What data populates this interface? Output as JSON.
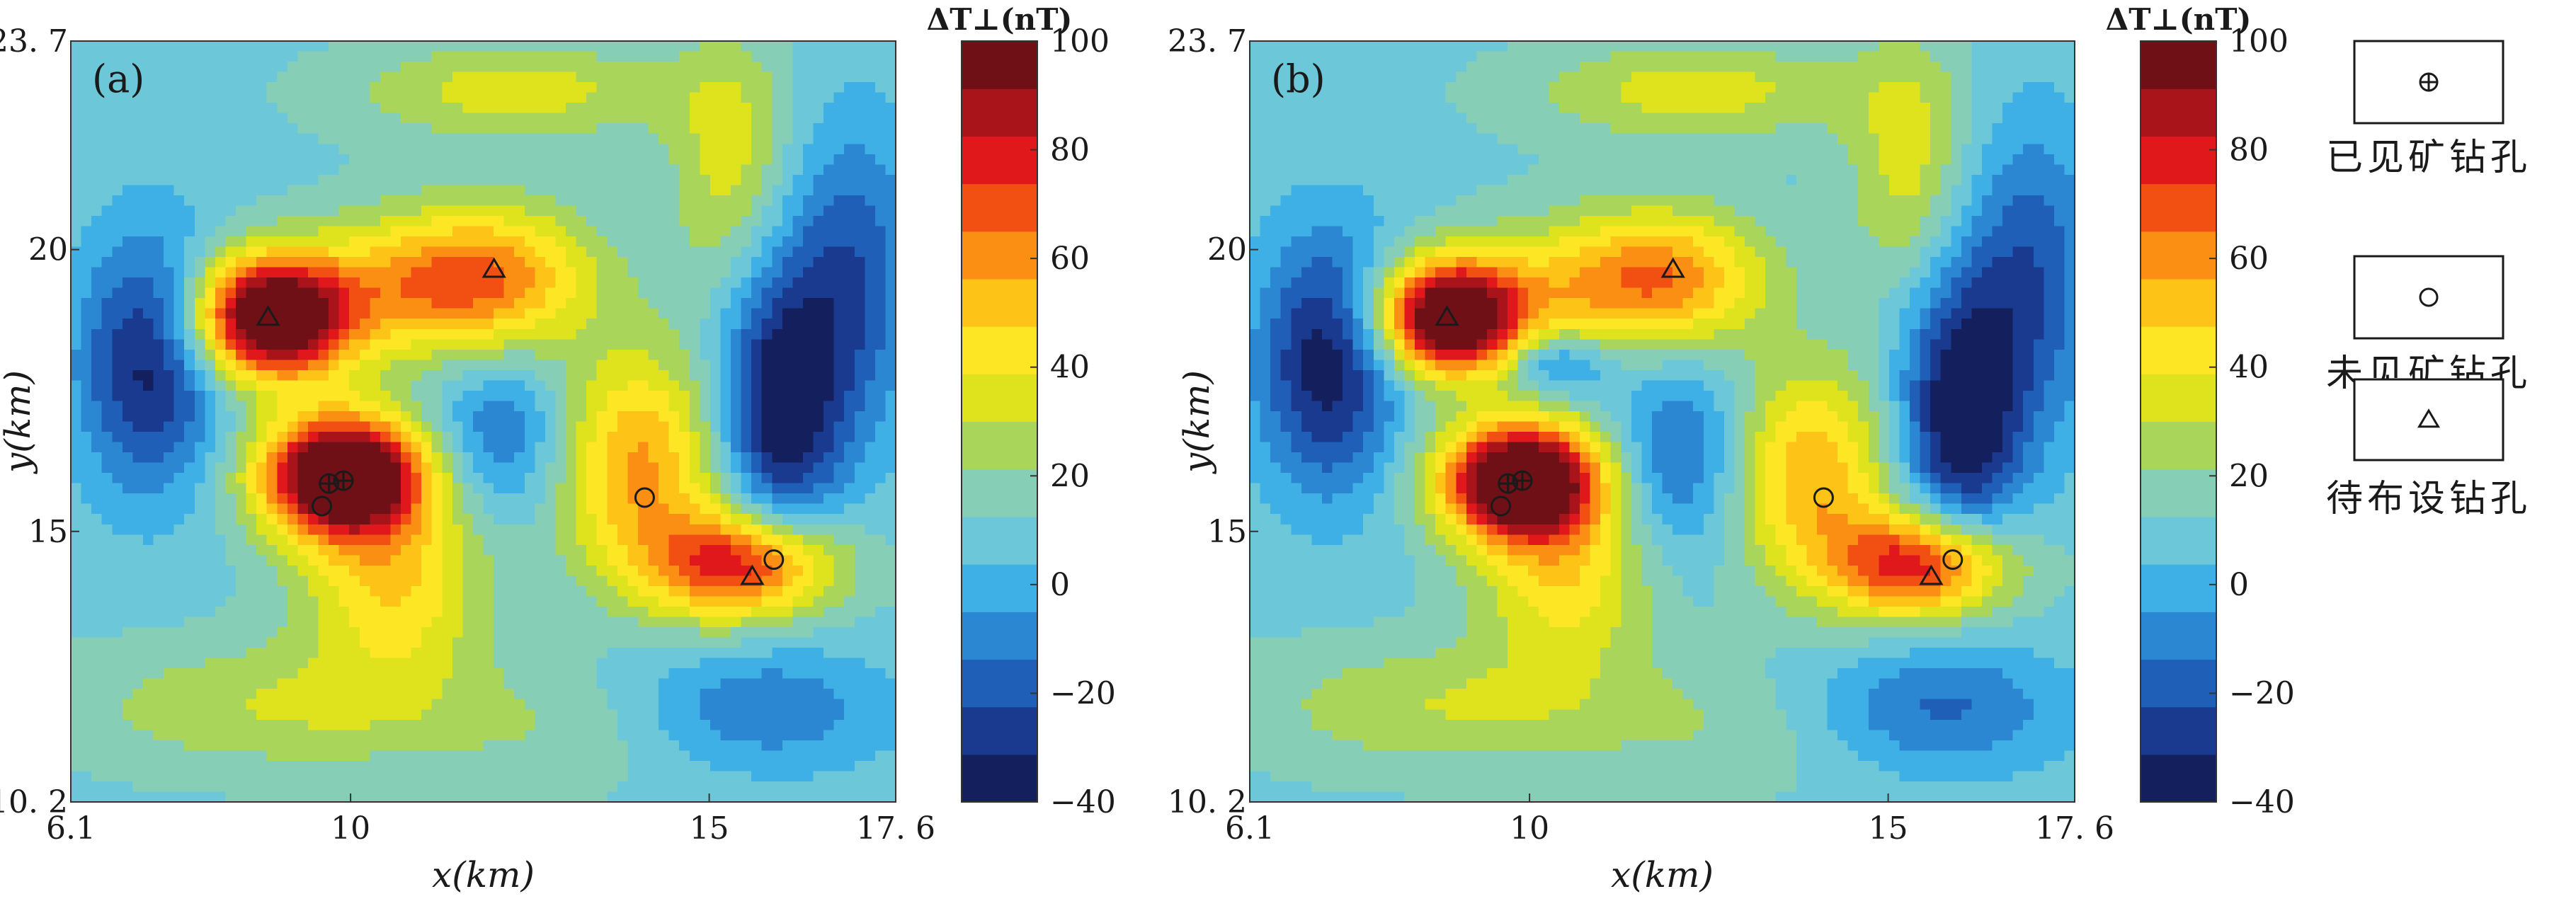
{
  "chart_data": [
    {
      "type": "heatmap",
      "panel_label": "(a)",
      "xlabel": "x(km)",
      "ylabel": "y(km)",
      "xlim": [
        6.1,
        17.6
      ],
      "ylim": [
        10.2,
        23.7
      ],
      "x_ticks": [
        {
          "value": 6.1,
          "label": "6.1"
        },
        {
          "value": 10,
          "label": "10"
        },
        {
          "value": 15,
          "label": "15"
        },
        {
          "value": 17.6,
          "label": "17. 6"
        }
      ],
      "y_ticks": [
        {
          "value": 10.2,
          "label": "10. 2"
        },
        {
          "value": 15,
          "label": "15"
        },
        {
          "value": 20,
          "label": "20"
        },
        {
          "value": 23.7,
          "label": "23. 7"
        }
      ],
      "colorbar": {
        "title": "ΔT⊥(nT)",
        "range": [
          -40,
          100
        ],
        "ticks": [
          {
            "value": 100,
            "label": "100"
          },
          {
            "value": 80,
            "label": "80"
          },
          {
            "value": 60,
            "label": "60"
          },
          {
            "value": 40,
            "label": "40"
          },
          {
            "value": 20,
            "label": "20"
          },
          {
            "value": 0,
            "label": "0"
          },
          {
            "value": -20,
            "label": "−20"
          },
          {
            "value": -40,
            "label": "−40"
          }
        ]
      },
      "field_blobs": [
        {
          "x": 8.9,
          "y": 18.8,
          "amp": 110,
          "sx": 0.75,
          "sy": 0.75
        },
        {
          "x": 9.9,
          "y": 16.0,
          "amp": 115,
          "sx": 0.8,
          "sy": 0.75
        },
        {
          "x": 10.6,
          "y": 14.1,
          "amp": 38,
          "sx": 0.9,
          "sy": 1.2
        },
        {
          "x": 12.0,
          "y": 19.5,
          "amp": 48,
          "sx": 1.0,
          "sy": 0.9
        },
        {
          "x": 10.6,
          "y": 19.3,
          "amp": 30,
          "sx": 1.0,
          "sy": 0.9
        },
        {
          "x": 14.0,
          "y": 16.2,
          "amp": 48,
          "sx": 0.8,
          "sy": 1.4
        },
        {
          "x": 15.5,
          "y": 14.4,
          "amp": 72,
          "sx": 0.9,
          "sy": 0.7
        },
        {
          "x": 12.3,
          "y": 22.8,
          "amp": 25,
          "sx": 1.6,
          "sy": 0.6
        },
        {
          "x": 15.3,
          "y": 21.5,
          "amp": 25,
          "sx": 0.6,
          "sy": 1.6
        },
        {
          "x": 9.0,
          "y": 11.9,
          "amp": 20,
          "sx": 2.0,
          "sy": 0.8
        },
        {
          "x": 13.5,
          "y": 11.5,
          "amp": 12,
          "sx": 1.5,
          "sy": 0.8
        },
        {
          "x": 7.2,
          "y": 18.0,
          "amp": -45,
          "sx": 0.7,
          "sy": 1.6
        },
        {
          "x": 16.0,
          "y": 17.2,
          "amp": -50,
          "sx": 0.6,
          "sy": 1.8
        },
        {
          "x": 12.1,
          "y": 16.7,
          "amp": -25,
          "sx": 0.7,
          "sy": 1.0
        },
        {
          "x": 15.5,
          "y": 11.8,
          "amp": -25,
          "sx": 1.4,
          "sy": 0.8
        },
        {
          "x": 17.0,
          "y": 19.5,
          "amp": -30,
          "sx": 0.7,
          "sy": 2.0
        }
      ],
      "markers": {
        "known_ore": [
          {
            "x": 9.7,
            "y": 15.85
          },
          {
            "x": 9.9,
            "y": 15.9
          }
        ],
        "no_ore": [
          {
            "x": 9.6,
            "y": 15.45
          },
          {
            "x": 14.1,
            "y": 15.6
          },
          {
            "x": 15.9,
            "y": 14.5
          }
        ],
        "planned": [
          {
            "x": 8.85,
            "y": 18.8
          },
          {
            "x": 12.0,
            "y": 19.65
          },
          {
            "x": 15.6,
            "y": 14.2
          }
        ]
      }
    },
    {
      "type": "heatmap",
      "panel_label": "(b)",
      "xlabel": "x(km)",
      "ylabel": "y(km)",
      "xlim": [
        6.1,
        17.6
      ],
      "ylim": [
        10.2,
        23.7
      ],
      "x_ticks": [
        {
          "value": 6.1,
          "label": "6.1"
        },
        {
          "value": 10,
          "label": "10"
        },
        {
          "value": 15,
          "label": "15"
        },
        {
          "value": 17.6,
          "label": "17. 6"
        }
      ],
      "y_ticks": [
        {
          "value": 10.2,
          "label": "10. 2"
        },
        {
          "value": 15,
          "label": "15"
        },
        {
          "value": 20,
          "label": "20"
        },
        {
          "value": 23.7,
          "label": "23. 7"
        }
      ],
      "colorbar": {
        "title": "ΔT⊥(nT)",
        "range": [
          -40,
          100
        ],
        "ticks": [
          {
            "value": 100,
            "label": "100"
          },
          {
            "value": 80,
            "label": "80"
          },
          {
            "value": 60,
            "label": "60"
          },
          {
            "value": 40,
            "label": "40"
          },
          {
            "value": 20,
            "label": "20"
          },
          {
            "value": 0,
            "label": "0"
          },
          {
            "value": -20,
            "label": "−20"
          },
          {
            "value": -40,
            "label": "−40"
          }
        ]
      },
      "field_blobs": [
        {
          "x": 8.9,
          "y": 18.8,
          "amp": 110,
          "sx": 0.7,
          "sy": 0.7
        },
        {
          "x": 9.9,
          "y": 15.9,
          "amp": 115,
          "sx": 0.78,
          "sy": 0.72
        },
        {
          "x": 10.5,
          "y": 14.2,
          "amp": 35,
          "sx": 0.85,
          "sy": 1.1
        },
        {
          "x": 12.0,
          "y": 19.5,
          "amp": 45,
          "sx": 0.95,
          "sy": 0.85
        },
        {
          "x": 10.6,
          "y": 19.3,
          "amp": 28,
          "sx": 1.0,
          "sy": 0.9
        },
        {
          "x": 13.9,
          "y": 16.0,
          "amp": 46,
          "sx": 0.8,
          "sy": 1.35
        },
        {
          "x": 15.5,
          "y": 14.4,
          "amp": 75,
          "sx": 0.85,
          "sy": 0.68
        },
        {
          "x": 12.3,
          "y": 22.8,
          "amp": 25,
          "sx": 1.6,
          "sy": 0.6
        },
        {
          "x": 15.3,
          "y": 21.5,
          "amp": 25,
          "sx": 0.6,
          "sy": 1.6
        },
        {
          "x": 9.0,
          "y": 11.9,
          "amp": 20,
          "sx": 2.0,
          "sy": 0.8
        },
        {
          "x": 13.5,
          "y": 11.5,
          "amp": 12,
          "sx": 1.5,
          "sy": 0.8
        },
        {
          "x": 7.2,
          "y": 18.0,
          "amp": -48,
          "sx": 0.7,
          "sy": 1.6
        },
        {
          "x": 16.0,
          "y": 17.0,
          "amp": -52,
          "sx": 0.6,
          "sy": 1.8
        },
        {
          "x": 12.1,
          "y": 16.3,
          "amp": -28,
          "sx": 0.7,
          "sy": 1.2
        },
        {
          "x": 15.5,
          "y": 11.8,
          "amp": -28,
          "sx": 1.4,
          "sy": 0.8
        },
        {
          "x": 17.0,
          "y": 19.5,
          "amp": -30,
          "sx": 0.7,
          "sy": 2.0
        },
        {
          "x": 10.4,
          "y": 18.0,
          "amp": -30,
          "sx": 0.5,
          "sy": 0.4
        }
      ],
      "markers": {
        "known_ore": [
          {
            "x": 9.7,
            "y": 15.85
          },
          {
            "x": 9.9,
            "y": 15.9
          }
        ],
        "no_ore": [
          {
            "x": 9.6,
            "y": 15.45
          },
          {
            "x": 14.1,
            "y": 15.6
          },
          {
            "x": 15.9,
            "y": 14.5
          }
        ],
        "planned": [
          {
            "x": 8.85,
            "y": 18.8
          },
          {
            "x": 12.0,
            "y": 19.65
          },
          {
            "x": 15.6,
            "y": 14.2
          }
        ]
      }
    }
  ],
  "legend": {
    "items": [
      {
        "symbol": "known_ore",
        "label": "已见矿钻孔"
      },
      {
        "symbol": "no_ore",
        "label": "未见矿钻孔"
      },
      {
        "symbol": "planned",
        "label": "待布设钻孔"
      }
    ]
  },
  "colors": {
    "colormap": [
      "#14205e",
      "#1a3a8f",
      "#1f5fb8",
      "#2c87d2",
      "#3fb0e6",
      "#6cc8d8",
      "#86cfb6",
      "#a9d65a",
      "#dfe31e",
      "#fde725",
      "#fdc316",
      "#fb8f14",
      "#f24f13",
      "#e1181b",
      "#a81419",
      "#6e1016"
    ],
    "marker_stroke": "#1a1a1a",
    "axis": "#333333"
  }
}
